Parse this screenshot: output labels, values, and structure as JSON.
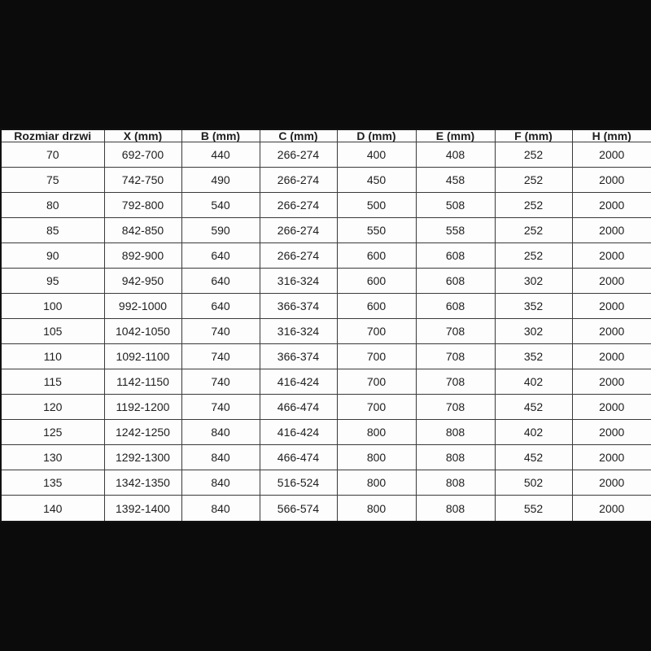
{
  "background_color": "#0b0b0b",
  "table": {
    "headers": [
      "Rozmiar drzwi",
      "X (mm)",
      "B (mm)",
      "C (mm)",
      "D (mm)",
      "E (mm)",
      "F (mm)",
      "H (mm)"
    ],
    "rows": [
      [
        "70",
        "692-700",
        "440",
        "266-274",
        "400",
        "408",
        "252",
        "2000"
      ],
      [
        "75",
        "742-750",
        "490",
        "266-274",
        "450",
        "458",
        "252",
        "2000"
      ],
      [
        "80",
        "792-800",
        "540",
        "266-274",
        "500",
        "508",
        "252",
        "2000"
      ],
      [
        "85",
        "842-850",
        "590",
        "266-274",
        "550",
        "558",
        "252",
        "2000"
      ],
      [
        "90",
        "892-900",
        "640",
        "266-274",
        "600",
        "608",
        "252",
        "2000"
      ],
      [
        "95",
        "942-950",
        "640",
        "316-324",
        "600",
        "608",
        "302",
        "2000"
      ],
      [
        "100",
        "992-1000",
        "640",
        "366-374",
        "600",
        "608",
        "352",
        "2000"
      ],
      [
        "105",
        "1042-1050",
        "740",
        "316-324",
        "700",
        "708",
        "302",
        "2000"
      ],
      [
        "110",
        "1092-1100",
        "740",
        "366-374",
        "700",
        "708",
        "352",
        "2000"
      ],
      [
        "115",
        "1142-1150",
        "740",
        "416-424",
        "700",
        "708",
        "402",
        "2000"
      ],
      [
        "120",
        "1192-1200",
        "740",
        "466-474",
        "700",
        "708",
        "452",
        "2000"
      ],
      [
        "125",
        "1242-1250",
        "840",
        "416-424",
        "800",
        "808",
        "402",
        "2000"
      ],
      [
        "130",
        "1292-1300",
        "840",
        "466-474",
        "800",
        "808",
        "452",
        "2000"
      ],
      [
        "135",
        "1342-1350",
        "840",
        "516-524",
        "800",
        "808",
        "502",
        "2000"
      ],
      [
        "140",
        "1392-1400",
        "840",
        "566-574",
        "800",
        "808",
        "552",
        "2000"
      ]
    ]
  }
}
